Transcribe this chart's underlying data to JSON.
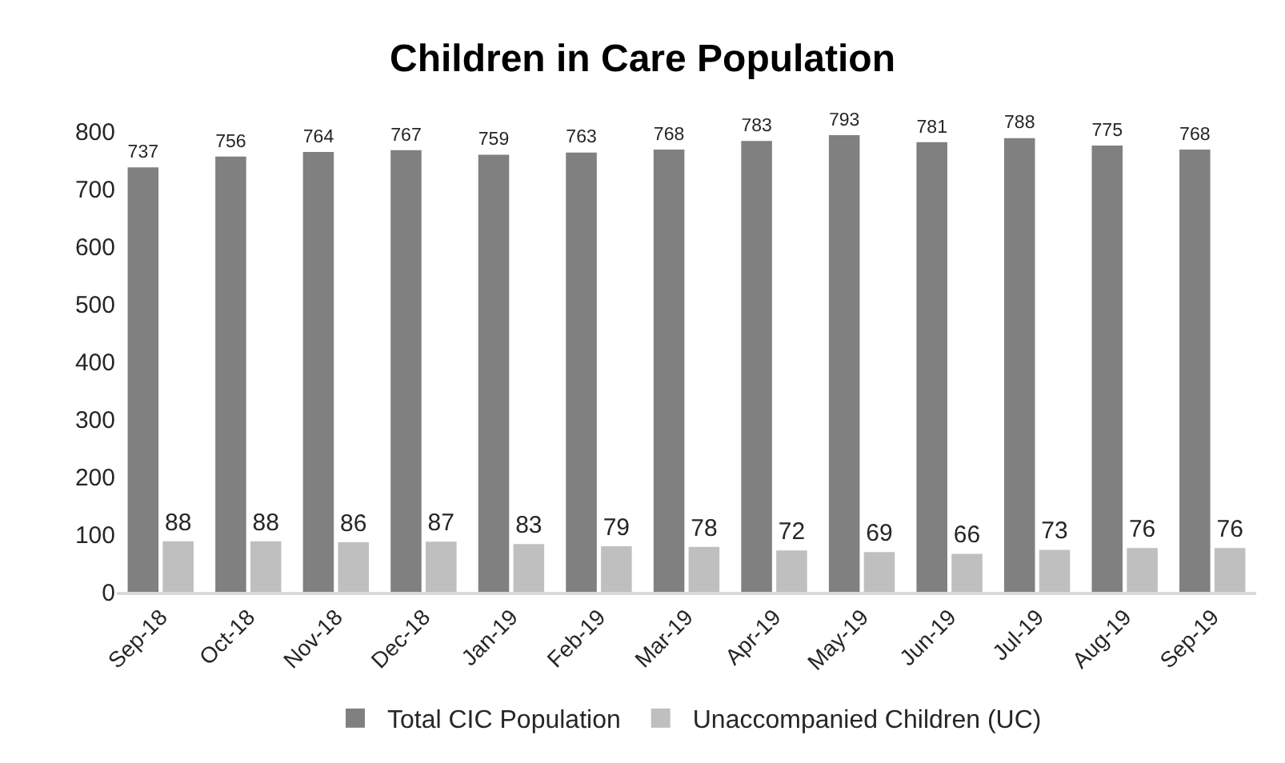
{
  "chart_data": {
    "type": "bar",
    "title": "Children in Care Population",
    "categories": [
      "Sep-18",
      "Oct-18",
      "Nov-18",
      "Dec-18",
      "Jan-19",
      "Feb-19",
      "Mar-19",
      "Apr-19",
      "May-19",
      "Jun-19",
      "Jul-19",
      "Aug-19",
      "Sep-19"
    ],
    "series": [
      {
        "name": "Total CIC Population",
        "color": "#808080",
        "values": [
          737,
          756,
          764,
          767,
          759,
          763,
          768,
          783,
          793,
          781,
          788,
          775,
          768
        ]
      },
      {
        "name": "Unaccompanied Children (UC)",
        "color": "#bfbfbf",
        "values": [
          88,
          88,
          86,
          87,
          83,
          79,
          78,
          72,
          69,
          66,
          73,
          76,
          76
        ]
      }
    ],
    "ylim": [
      0,
      800
    ],
    "yticks": [
      0,
      100,
      200,
      300,
      400,
      500,
      600,
      700,
      800
    ],
    "data_labels": true,
    "grid": false,
    "legend": "bottom"
  }
}
